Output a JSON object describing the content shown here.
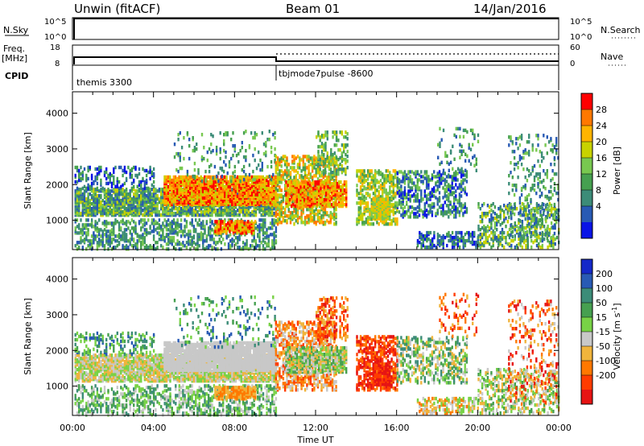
{
  "header": {
    "station": "Unwin (fitACF)",
    "beam": "Beam 01",
    "date": "14/Jan/2016"
  },
  "nsky_panel": {
    "left_label": "N.Sky",
    "right_label": "N.Search",
    "ticks_left": [
      "10^5",
      "10^0"
    ],
    "ticks_right": [
      "10^5",
      "10^0"
    ]
  },
  "freq_panel": {
    "left_label_1": "Freq.",
    "left_label_2": "[MHz]",
    "right_label": "Nave",
    "ticks_left": [
      "8",
      "18"
    ],
    "ticks_right": [
      "60",
      "0"
    ]
  },
  "cpid_panel": {
    "label": "CPID",
    "modes": [
      {
        "name": "themis 3300",
        "start_hour": 0
      },
      {
        "name": "tbjmode7pulse -8600",
        "start_hour": 10
      }
    ]
  },
  "chart_data": [
    {
      "type": "heatmap",
      "name": "power",
      "xlabel": "",
      "ylabel": "Slant Range [km]",
      "xlim": [
        0,
        24
      ],
      "ylim": [
        180,
        4600
      ],
      "yticks": [
        "4000",
        "3000",
        "2000",
        "1000"
      ],
      "colorbar": {
        "label": "Power [dB]",
        "ticks": [
          "28",
          "24",
          "20",
          "16",
          "12",
          "8",
          "4"
        ],
        "colors": [
          "#ff0000",
          "#ff7800",
          "#ffb400",
          "#c8d200",
          "#78c850",
          "#46a050",
          "#3c8c78",
          "#285ab4",
          "#0a14e6"
        ]
      }
    },
    {
      "type": "heatmap",
      "name": "velocity",
      "xlabel": "Time UT",
      "ylabel": "Slant Range [km]",
      "xlim": [
        0,
        24
      ],
      "ylim": [
        180,
        4600
      ],
      "xticks": [
        "00:00",
        "04:00",
        "08:00",
        "12:00",
        "16:00",
        "20:00",
        "00:00"
      ],
      "yticks": [
        "4000",
        "3000",
        "2000",
        "1000"
      ],
      "colorbar": {
        "label": "Velocity [m s^-1]",
        "ticks": [
          "200",
          "100",
          "50",
          "15",
          "-15",
          "-50",
          "-100",
          "-200"
        ],
        "colors": [
          "#1428c8",
          "#285ab4",
          "#3c8c78",
          "#46a050",
          "#78d246",
          "#c8c8c8",
          "#f0b43c",
          "#ff7800",
          "#ff3c00",
          "#e61414"
        ]
      }
    }
  ]
}
